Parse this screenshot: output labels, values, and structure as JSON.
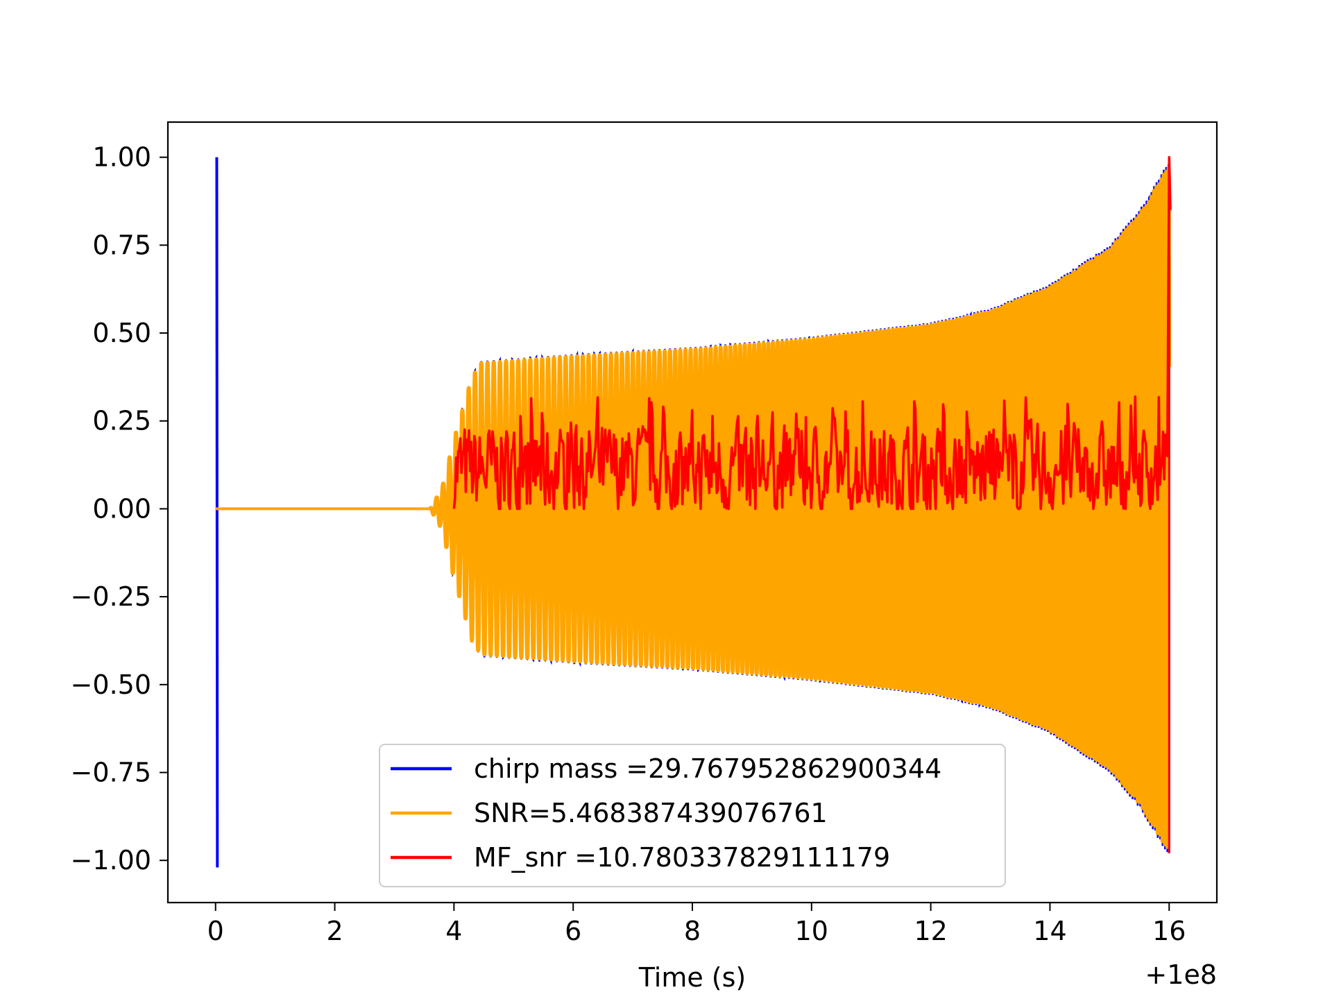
{
  "chart_data": {
    "type": "line",
    "title": "",
    "xlabel": "Time (s)",
    "ylabel": "",
    "x_offset_label": "+1e8",
    "xlim": [
      -0.8,
      16.8
    ],
    "ylim": [
      -1.12,
      1.1
    ],
    "xticks": [
      0,
      2,
      4,
      6,
      8,
      10,
      12,
      14,
      16
    ],
    "xtick_labels": [
      "0",
      "2",
      "4",
      "6",
      "8",
      "10",
      "12",
      "14",
      "16"
    ],
    "yticks": [
      1.0,
      0.75,
      0.5,
      0.25,
      0.0,
      -0.25,
      -0.5,
      -0.75,
      -1.0
    ],
    "ytick_labels": [
      "1.00",
      "0.75",
      "0.50",
      "0.25",
      "0.00",
      "−0.25",
      "−0.50",
      "−0.75",
      "−1.00"
    ],
    "grid": false,
    "legend_position": "lower-center",
    "series": [
      {
        "name": "chirp mass =29.767952862900344",
        "color": "#0000ff",
        "kind": "chirp-envelope",
        "spike_x": 0.02,
        "spike_y": [
          1.0,
          -1.02
        ],
        "onset_x": 3.6,
        "end_x": 16.0,
        "envelope": [
          [
            3.6,
            0.0
          ],
          [
            3.8,
            0.06
          ],
          [
            4.0,
            0.2
          ],
          [
            4.3,
            0.38
          ],
          [
            4.45,
            0.42
          ],
          [
            6.0,
            0.44
          ],
          [
            8.0,
            0.46
          ],
          [
            10.0,
            0.49
          ],
          [
            12.0,
            0.53
          ],
          [
            13.0,
            0.57
          ],
          [
            14.0,
            0.64
          ],
          [
            15.0,
            0.75
          ],
          [
            15.5,
            0.85
          ],
          [
            16.0,
            0.99
          ]
        ],
        "end_y": -0.98
      },
      {
        "name": "SNR=5.468387439076761",
        "color": "#ffa500",
        "kind": "filled-oscillation",
        "flat_start_x": 0.0,
        "onset_x": 3.6,
        "end_x": 16.0
      },
      {
        "name": "MF_snr =10.780337829111179",
        "color": "#ff0000",
        "kind": "noise",
        "start_x": 4.0,
        "end_x": 15.95,
        "mean": 0.11,
        "min": 0.0,
        "max": 0.32,
        "final_peak_x": 16.0,
        "final_peak_y": 1.0
      }
    ]
  }
}
